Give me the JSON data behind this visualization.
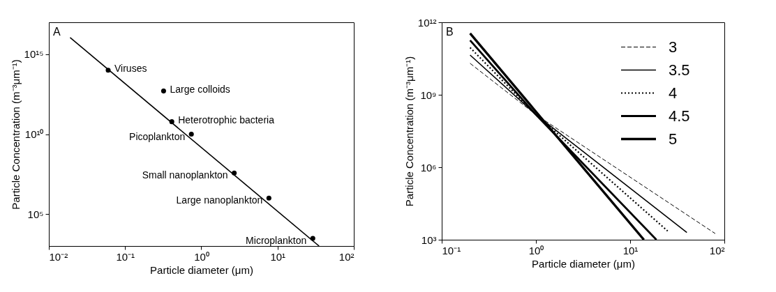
{
  "chart_data": [
    {
      "type": "scatter",
      "xlabel": "Particle diameter (μm)",
      "ylabel": "Particle Concentration (m⁻³μm⁻¹)",
      "log": "xy",
      "marker": "circle",
      "xlim": [
        0.01,
        100
      ],
      "ylim": [
        1000,
        1e+17
      ],
      "xticks": [
        {
          "value": 0.01,
          "label": "10⁻²"
        },
        {
          "value": 0.1,
          "label": "10⁻¹"
        },
        {
          "value": 1,
          "label": "10⁰"
        },
        {
          "value": 10,
          "label": "10¹"
        },
        {
          "value": 100,
          "label": "10²"
        }
      ],
      "yticks": [
        {
          "value": 100000,
          "label": "10⁵"
        },
        {
          "value": 10000000000.0,
          "label": "10¹⁰"
        },
        {
          "value": 1000000000000000.0,
          "label": "10¹⁵"
        }
      ],
      "series": [
        {
          "color": "#000000",
          "x": [
            0.06,
            0.32,
            0.41,
            0.74,
            2.7,
            7.7,
            29
          ],
          "values": [
            100000000000000.0,
            5000000000000.0,
            60000000000.0,
            10000000000.0,
            37000000.0,
            1000000.0,
            3000
          ]
        },
        {
          "type": "line",
          "color": "#000000",
          "marker": "none",
          "line_style": "solid",
          "x": [
            0.019,
            35
          ],
          "values": [
            1.1e+16,
            1000
          ]
        }
      ],
      "annotations": [
        "A",
        {
          "text": "Viruses",
          "x": 0.06,
          "y": 100000000000000.0
        },
        {
          "text": "Large colloids",
          "x": 0.32,
          "y": 5000000000000.0
        },
        {
          "text": "Heterotrophic bacteria",
          "x": 0.41,
          "y": 60000000000.0
        },
        {
          "text": "Picoplankton",
          "x": 0.74,
          "y": 10000000000.0
        },
        {
          "text": "Small nanoplankton",
          "x": 2.7,
          "y": 37000000.0
        },
        {
          "text": "Large nanoplankton",
          "x": 7.7,
          "y": 1000000.0
        },
        {
          "text": "Microplankton",
          "x": 29,
          "y": 3000
        }
      ]
    },
    {
      "type": "line",
      "xlabel": "Particle diameter (μm)",
      "ylabel": "Particle Concentration (m⁻³μm⁻¹)",
      "log": "xy",
      "legend": "top right",
      "xlim": [
        0.1,
        100
      ],
      "ylim": [
        1000,
        1000000000000.0
      ],
      "xticks": [
        {
          "value": 0.1,
          "label": "10⁻¹"
        },
        {
          "value": 1,
          "label": "10⁰"
        },
        {
          "value": 10,
          "label": "10¹"
        },
        {
          "value": 100,
          "label": "10²"
        }
      ],
      "yticks": [
        {
          "value": 1000,
          "label": "10³"
        },
        {
          "value": 1000000,
          "label": "10⁶"
        },
        {
          "value": 1000000000.0,
          "label": "10⁹"
        },
        {
          "value": 1000000000000.0,
          "label": "10¹²"
        }
      ],
      "series": [
        {
          "name": "3",
          "color": "#000000",
          "line_style": "dashed",
          "x": [
            0.2,
            1,
            80
          ],
          "values": [
            20000000000.0,
            150000000.0,
            1800
          ]
        },
        {
          "name": "3.5",
          "color": "#000000",
          "line_style": "solid",
          "x": [
            0.2,
            1,
            40
          ],
          "values": [
            44000000000.0,
            150000000.0,
            2000
          ]
        },
        {
          "name": "4",
          "color": "#000000",
          "line_style": "dotted",
          "x": [
            0.2,
            1,
            25
          ],
          "values": [
            90000000000.0,
            150000000.0,
            2300
          ]
        },
        {
          "name": "4.5",
          "color": "#000000",
          "line_style": "solid",
          "x": [
            0.2,
            1,
            19
          ],
          "values": [
            180000000000.0,
            150000000.0,
            1000
          ]
        },
        {
          "name": "5",
          "color": "#000000",
          "line_style": "solid",
          "x": [
            0.2,
            1,
            14
          ],
          "values": [
            350000000000.0,
            200000000.0,
            1000
          ]
        }
      ],
      "annotations": [
        "B"
      ]
    }
  ]
}
